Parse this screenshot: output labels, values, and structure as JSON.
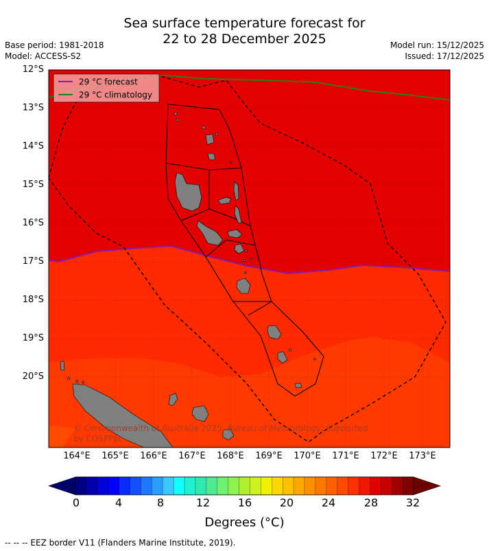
{
  "title": {
    "line1": "Sea surface temperature forecast for",
    "line2": "22 to 28 December 2025"
  },
  "meta": {
    "base_period": "Base period: 1981-2018",
    "model": "Model: ACCESS-S2",
    "model_run": "Model run: 15/12/2025",
    "issued": "Issued: 17/12/2025"
  },
  "legend": {
    "forecast": "29 °C  forecast",
    "climatology": "29 °C  climatology"
  },
  "axes": {
    "lat_labels": [
      "12°S",
      "13°S",
      "14°S",
      "15°S",
      "16°S",
      "17°S",
      "18°S",
      "19°S",
      "20°S"
    ],
    "lon_labels": [
      "164°E",
      "165°E",
      "166°E",
      "167°E",
      "168°E",
      "169°E",
      "170°E",
      "171°E",
      "172°E",
      "173°E"
    ]
  },
  "copyright": {
    "line1": "© Commonwealth of Australia 2025, Bureau of Meteorology, supported",
    "line2": "by COSPPac"
  },
  "colorbar": {
    "labels": [
      "0",
      "4",
      "8",
      "12",
      "16",
      "20",
      "24",
      "28",
      "32"
    ],
    "title": "Degrees (°C)",
    "colors": [
      "#000080",
      "#0000ad",
      "#0000d9",
      "#0000ff",
      "#0a2aff",
      "#1450ff",
      "#1e78ff",
      "#28a0ff",
      "#3cc8ff",
      "#14ffff",
      "#20f0d0",
      "#30e8b0",
      "#50e890",
      "#70f070",
      "#90f050",
      "#b0f030",
      "#d0f020",
      "#f0f000",
      "#ffd700",
      "#ffc000",
      "#ffa800",
      "#ff9000",
      "#ff7800",
      "#ff6000",
      "#ff4800",
      "#ff3000",
      "#f01800",
      "#e00000",
      "#c80000",
      "#a00000",
      "#800000"
    ]
  },
  "map_colors": {
    "top_zone": "#e30000",
    "mid_zone": "#ff2a00",
    "bottom_zone": "#ff3a00",
    "land": "#808080",
    "forecast_line": "#8a1aa8",
    "climatology_line": "#2d7d1e"
  },
  "footnote": "--  --  -- EEZ border V11 (Flanders Marine Institute, 2019)."
}
